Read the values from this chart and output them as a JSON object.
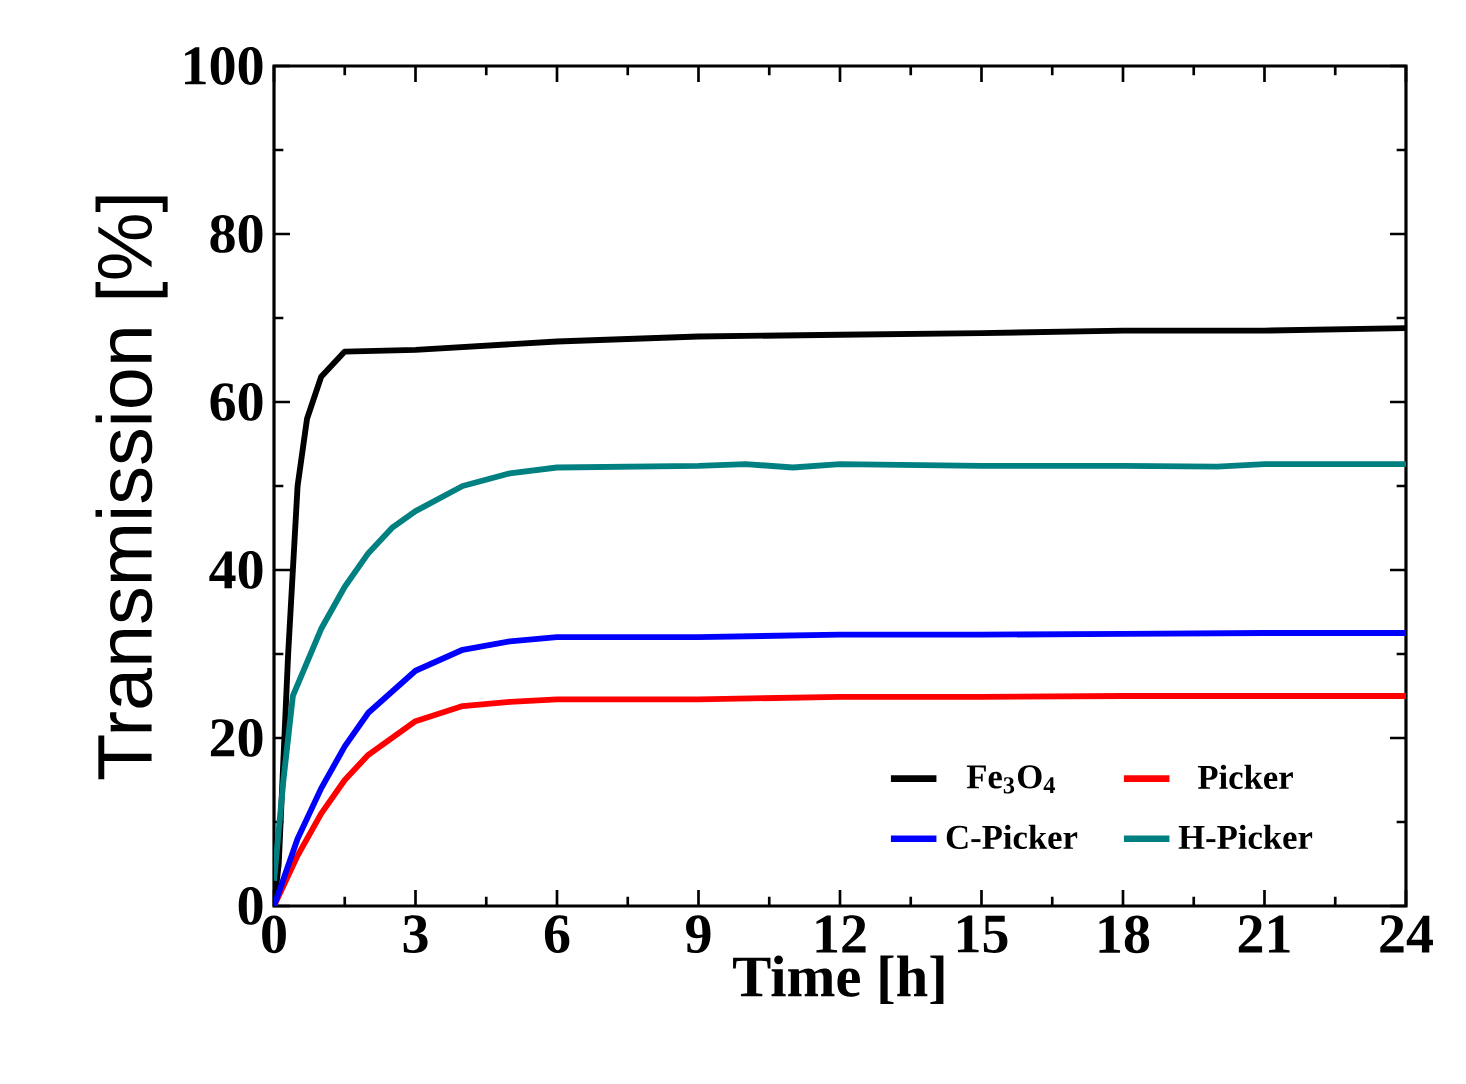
{
  "chart_data": {
    "type": "line",
    "xlabel": "Time [h]",
    "ylabel": "Transmission [%]",
    "xlim": [
      0,
      24
    ],
    "ylim": [
      0,
      100
    ],
    "xticks": [
      0,
      3,
      6,
      9,
      12,
      15,
      18,
      21,
      24
    ],
    "yticks": [
      0,
      20,
      40,
      60,
      80,
      100
    ],
    "grid": false,
    "legend": "bottom right",
    "marker": "none",
    "line_style": "solid",
    "series": [
      {
        "name": "Fe$_{3}$O$_{4}$",
        "color": "#000000",
        "x": [
          0,
          0.1,
          0.3,
          0.5,
          0.7,
          1,
          1.5,
          3,
          6,
          9,
          12,
          15,
          18,
          21,
          24
        ],
        "values": [
          0,
          5,
          30,
          50,
          58,
          63,
          66,
          66.2,
          67.2,
          67.8,
          68,
          68.2,
          68.5,
          68.5,
          68.8
        ]
      },
      {
        "name": "Picker",
        "color": "#ff0000",
        "x": [
          0,
          0.5,
          1,
          1.5,
          2,
          3,
          4,
          5,
          6,
          9,
          12,
          15,
          18,
          21,
          24
        ],
        "values": [
          0,
          6,
          11,
          15,
          18,
          22,
          23.8,
          24.3,
          24.6,
          24.6,
          24.9,
          24.9,
          25,
          25,
          25
        ]
      },
      {
        "name": "C-Picker",
        "color": "#0000ff",
        "x": [
          0,
          0.5,
          1,
          1.5,
          2,
          3,
          4,
          5,
          6,
          9,
          12,
          15,
          18,
          21,
          24
        ],
        "values": [
          0,
          8,
          14,
          19,
          23,
          28,
          30.5,
          31.5,
          32,
          32,
          32.3,
          32.3,
          32.4,
          32.5,
          32.5
        ]
      },
      {
        "name": "H-Picker",
        "color": "#008080",
        "x": [
          0,
          0.2,
          0.4,
          1,
          1.5,
          2,
          2.5,
          3,
          4,
          5,
          6,
          9,
          10,
          11,
          12,
          15,
          18,
          20,
          21,
          24
        ],
        "values": [
          3,
          15,
          25,
          33,
          38,
          42,
          45,
          47,
          50,
          51.5,
          52.2,
          52.4,
          52.6,
          52.2,
          52.6,
          52.4,
          52.4,
          52.3,
          52.6,
          52.6
        ]
      }
    ]
  }
}
